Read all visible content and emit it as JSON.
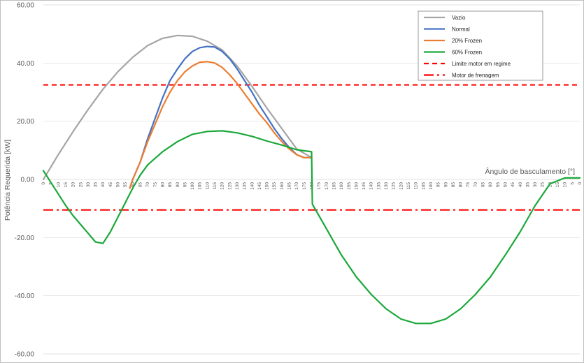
{
  "chart_data": {
    "type": "line",
    "title": "",
    "xlabel": "Ângulo de basculamento [°]",
    "ylabel": "Potência Requerida [kW]",
    "ylim": [
      -60,
      60
    ],
    "yticks": [
      "60.00",
      "40.00",
      "20.00",
      "0.00",
      "-20.00",
      "-40.00",
      "-60.00"
    ],
    "xtick_labels": [
      "0",
      "5",
      "10",
      "15",
      "20",
      "25",
      "30",
      "35",
      "40",
      "45",
      "50",
      "55",
      "60",
      "65",
      "70",
      "75",
      "80",
      "85",
      "90",
      "95",
      "100",
      "105",
      "110",
      "115",
      "120",
      "125",
      "130",
      "135",
      "140",
      "145",
      "150",
      "155",
      "160",
      "165",
      "170",
      "175",
      "180",
      "175",
      "170",
      "165",
      "160",
      "155",
      "150",
      "145",
      "140",
      "135",
      "130",
      "125",
      "120",
      "115",
      "110",
      "105",
      "100",
      "95",
      "90",
      "85",
      "80",
      "75",
      "70",
      "65",
      "60",
      "55",
      "50",
      "45",
      "40",
      "35",
      "30",
      "25",
      "20",
      "15",
      "10",
      "5",
      "0"
    ],
    "grid": "horizontal",
    "legend_position": "top-right",
    "series": [
      {
        "name": "Vazio",
        "color": "#a5a5a5",
        "style": "solid",
        "x": [
          0,
          10,
          20,
          30,
          40,
          50,
          60,
          70,
          80,
          90,
          100,
          110,
          120,
          130,
          140,
          150,
          160,
          170,
          180
        ],
        "y": [
          0,
          8.5,
          16.5,
          24,
          31,
          37,
          42,
          46,
          48.5,
          49.5,
          49.2,
          47.5,
          44.5,
          39,
          32,
          24.5,
          17.5,
          10.5,
          7.5
        ]
      },
      {
        "name": "Normal",
        "color": "#4472c4",
        "style": "solid",
        "x": [
          58,
          60,
          65,
          70,
          75,
          80,
          85,
          90,
          95,
          100,
          105,
          110,
          115,
          120,
          125,
          130,
          135,
          140,
          145,
          150,
          155,
          160,
          165,
          170,
          175,
          180
        ],
        "y": [
          -3,
          0,
          6,
          14,
          21,
          28,
          34,
          38,
          41.5,
          44,
          45.3,
          45.7,
          45.5,
          44,
          41.5,
          38,
          34,
          30,
          25.5,
          21.5,
          17.5,
          14,
          11,
          8.5,
          7.5,
          7.5
        ]
      },
      {
        "name": "20% Frozen",
        "color": "#ed7d31",
        "style": "solid",
        "x": [
          58,
          60,
          65,
          70,
          75,
          80,
          85,
          90,
          95,
          100,
          105,
          110,
          115,
          120,
          125,
          130,
          135,
          140,
          145,
          150,
          155,
          160,
          165,
          170,
          175,
          180
        ],
        "y": [
          -3,
          0,
          6,
          13,
          19,
          25,
          30,
          34,
          37,
          39,
          40.3,
          40.5,
          40,
          38.5,
          36,
          33,
          29.5,
          26,
          22.5,
          19.5,
          16,
          13,
          10.5,
          8.5,
          7.5,
          7.5
        ]
      },
      {
        "name": "60% Frozen",
        "color": "#1aa83a",
        "style": "solid",
        "x": [
          0,
          5,
          10,
          15,
          20,
          25,
          30,
          35,
          40,
          45,
          50,
          55,
          60,
          65,
          70,
          80,
          90,
          100,
          110,
          120,
          130,
          140,
          150,
          160,
          170,
          180,
          180.5,
          190,
          200,
          210,
          220,
          230,
          240,
          250,
          260,
          270,
          280,
          290,
          300,
          310,
          320,
          330,
          340,
          350,
          360
        ],
        "y": [
          3,
          -1,
          -5,
          -9,
          -12.5,
          -15.5,
          -18.5,
          -21.5,
          -22,
          -18,
          -13,
          -8,
          -3,
          1.5,
          5,
          9.5,
          13,
          15.5,
          16.5,
          16.7,
          16,
          14.8,
          13.2,
          11.8,
          10.2,
          9.5,
          -8.5,
          -17,
          -26,
          -33.5,
          -39.5,
          -44.5,
          -48,
          -49.5,
          -49.5,
          -48,
          -44.5,
          -39.5,
          -33.5,
          -26,
          -18,
          -9,
          -1.5,
          0.5,
          0.5
        ]
      },
      {
        "name": "Limite motor em regime",
        "color": "#ff0000",
        "style": "dashed",
        "value": 32.5
      },
      {
        "name": "Motor de frenagem",
        "color": "#ff0000",
        "style": "dashdot",
        "value": -10.5
      }
    ]
  }
}
